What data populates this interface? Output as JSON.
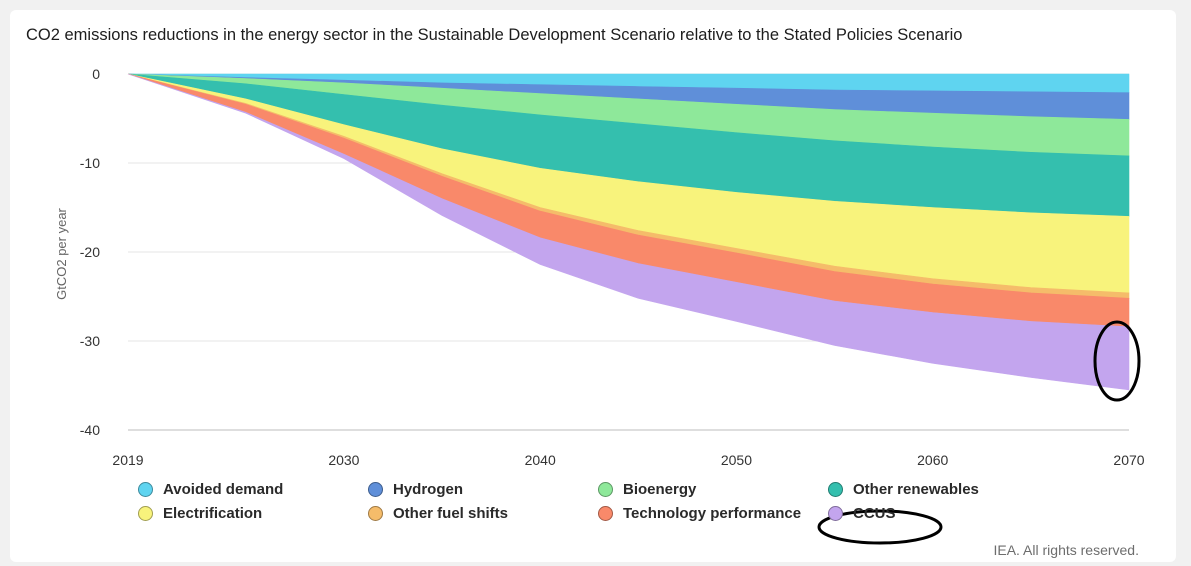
{
  "chart_data": {
    "type": "area",
    "stacked": true,
    "title": "CO2 emissions reductions in the energy sector in the Sustainable Development Scenario relative to the Stated Policies Scenario",
    "ylabel": "GtCO2 per year",
    "xlabel": "",
    "x": [
      2019,
      2025,
      2030,
      2035,
      2040,
      2045,
      2050,
      2055,
      2060,
      2065,
      2070
    ],
    "xlim": [
      2019,
      2070
    ],
    "ylim": [
      -40,
      0
    ],
    "xticks": [
      2019,
      2030,
      2040,
      2050,
      2060,
      2070
    ],
    "yticks": [
      0,
      -10,
      -20,
      -30,
      -40
    ],
    "grid": true,
    "series": [
      {
        "name": "Avoided demand",
        "color": "#5fd4f0",
        "values": [
          0,
          -0.4,
          -0.7,
          -1.0,
          -1.2,
          -1.4,
          -1.6,
          -1.8,
          -1.9,
          -2.0,
          -2.1
        ]
      },
      {
        "name": "Hydrogen",
        "color": "#5f8fd9",
        "values": [
          0,
          -0.1,
          -0.3,
          -0.6,
          -1.0,
          -1.4,
          -1.8,
          -2.2,
          -2.5,
          -2.8,
          -3.0
        ]
      },
      {
        "name": "Bioenergy",
        "color": "#8ee89a",
        "values": [
          0,
          -0.6,
          -1.3,
          -1.9,
          -2.4,
          -2.8,
          -3.2,
          -3.5,
          -3.8,
          -4.0,
          -4.1
        ]
      },
      {
        "name": "Other renewables",
        "color": "#34bfae",
        "values": [
          0,
          -1.7,
          -3.4,
          -4.9,
          -6.0,
          -6.5,
          -6.7,
          -6.8,
          -6.8,
          -6.8,
          -6.8
        ]
      },
      {
        "name": "Electrification",
        "color": "#f8f37c",
        "values": [
          0,
          -0.5,
          -1.3,
          -2.8,
          -4.4,
          -5.5,
          -6.3,
          -7.3,
          -8.0,
          -8.4,
          -8.6
        ]
      },
      {
        "name": "Other fuel shifts",
        "color": "#f5bc6a",
        "values": [
          0,
          -0.1,
          -0.2,
          -0.3,
          -0.4,
          -0.5,
          -0.5,
          -0.6,
          -0.6,
          -0.6,
          -0.6
        ]
      },
      {
        "name": "Technology performance",
        "color": "#f9896a",
        "values": [
          0,
          -0.9,
          -1.8,
          -2.5,
          -3.0,
          -3.2,
          -3.3,
          -3.3,
          -3.2,
          -3.2,
          -3.2
        ]
      },
      {
        "name": "CCUS",
        "color": "#c3a5ee",
        "values": [
          0,
          -0.1,
          -0.5,
          -1.9,
          -3.0,
          -3.9,
          -4.4,
          -5.0,
          -5.7,
          -6.3,
          -7.1
        ]
      }
    ],
    "annotations": [
      "circle around CCUS values at 2070",
      "circle around CCUS legend entry"
    ]
  },
  "credits": "IEA. All rights reserved."
}
